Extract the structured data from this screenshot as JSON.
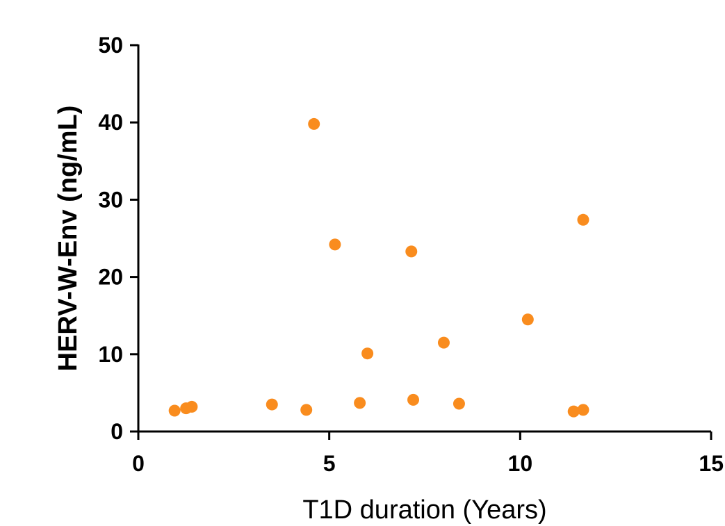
{
  "chart_data": {
    "type": "scatter",
    "title": "",
    "xlabel": "T1D duration (Years)",
    "ylabel": "HERV-W-Env (ng/mL)",
    "xlim": [
      0,
      15
    ],
    "ylim": [
      0,
      50
    ],
    "x_ticks": [
      "0",
      "5",
      "10",
      "15"
    ],
    "y_ticks": [
      "0",
      "10",
      "20",
      "30",
      "40",
      "50"
    ],
    "grid": false,
    "marker_color": "#F98C1E",
    "points": [
      {
        "x": 0.95,
        "y": 2.7
      },
      {
        "x": 1.25,
        "y": 3.0
      },
      {
        "x": 1.4,
        "y": 3.2
      },
      {
        "x": 3.5,
        "y": 3.5
      },
      {
        "x": 4.4,
        "y": 2.8
      },
      {
        "x": 4.6,
        "y": 39.8
      },
      {
        "x": 5.15,
        "y": 24.2
      },
      {
        "x": 5.8,
        "y": 3.7
      },
      {
        "x": 6.0,
        "y": 10.1
      },
      {
        "x": 7.15,
        "y": 23.3
      },
      {
        "x": 7.2,
        "y": 4.1
      },
      {
        "x": 8.0,
        "y": 11.5
      },
      {
        "x": 8.4,
        "y": 3.6
      },
      {
        "x": 10.2,
        "y": 14.5
      },
      {
        "x": 11.4,
        "y": 2.6
      },
      {
        "x": 11.65,
        "y": 27.4
      },
      {
        "x": 11.65,
        "y": 2.8
      }
    ]
  }
}
